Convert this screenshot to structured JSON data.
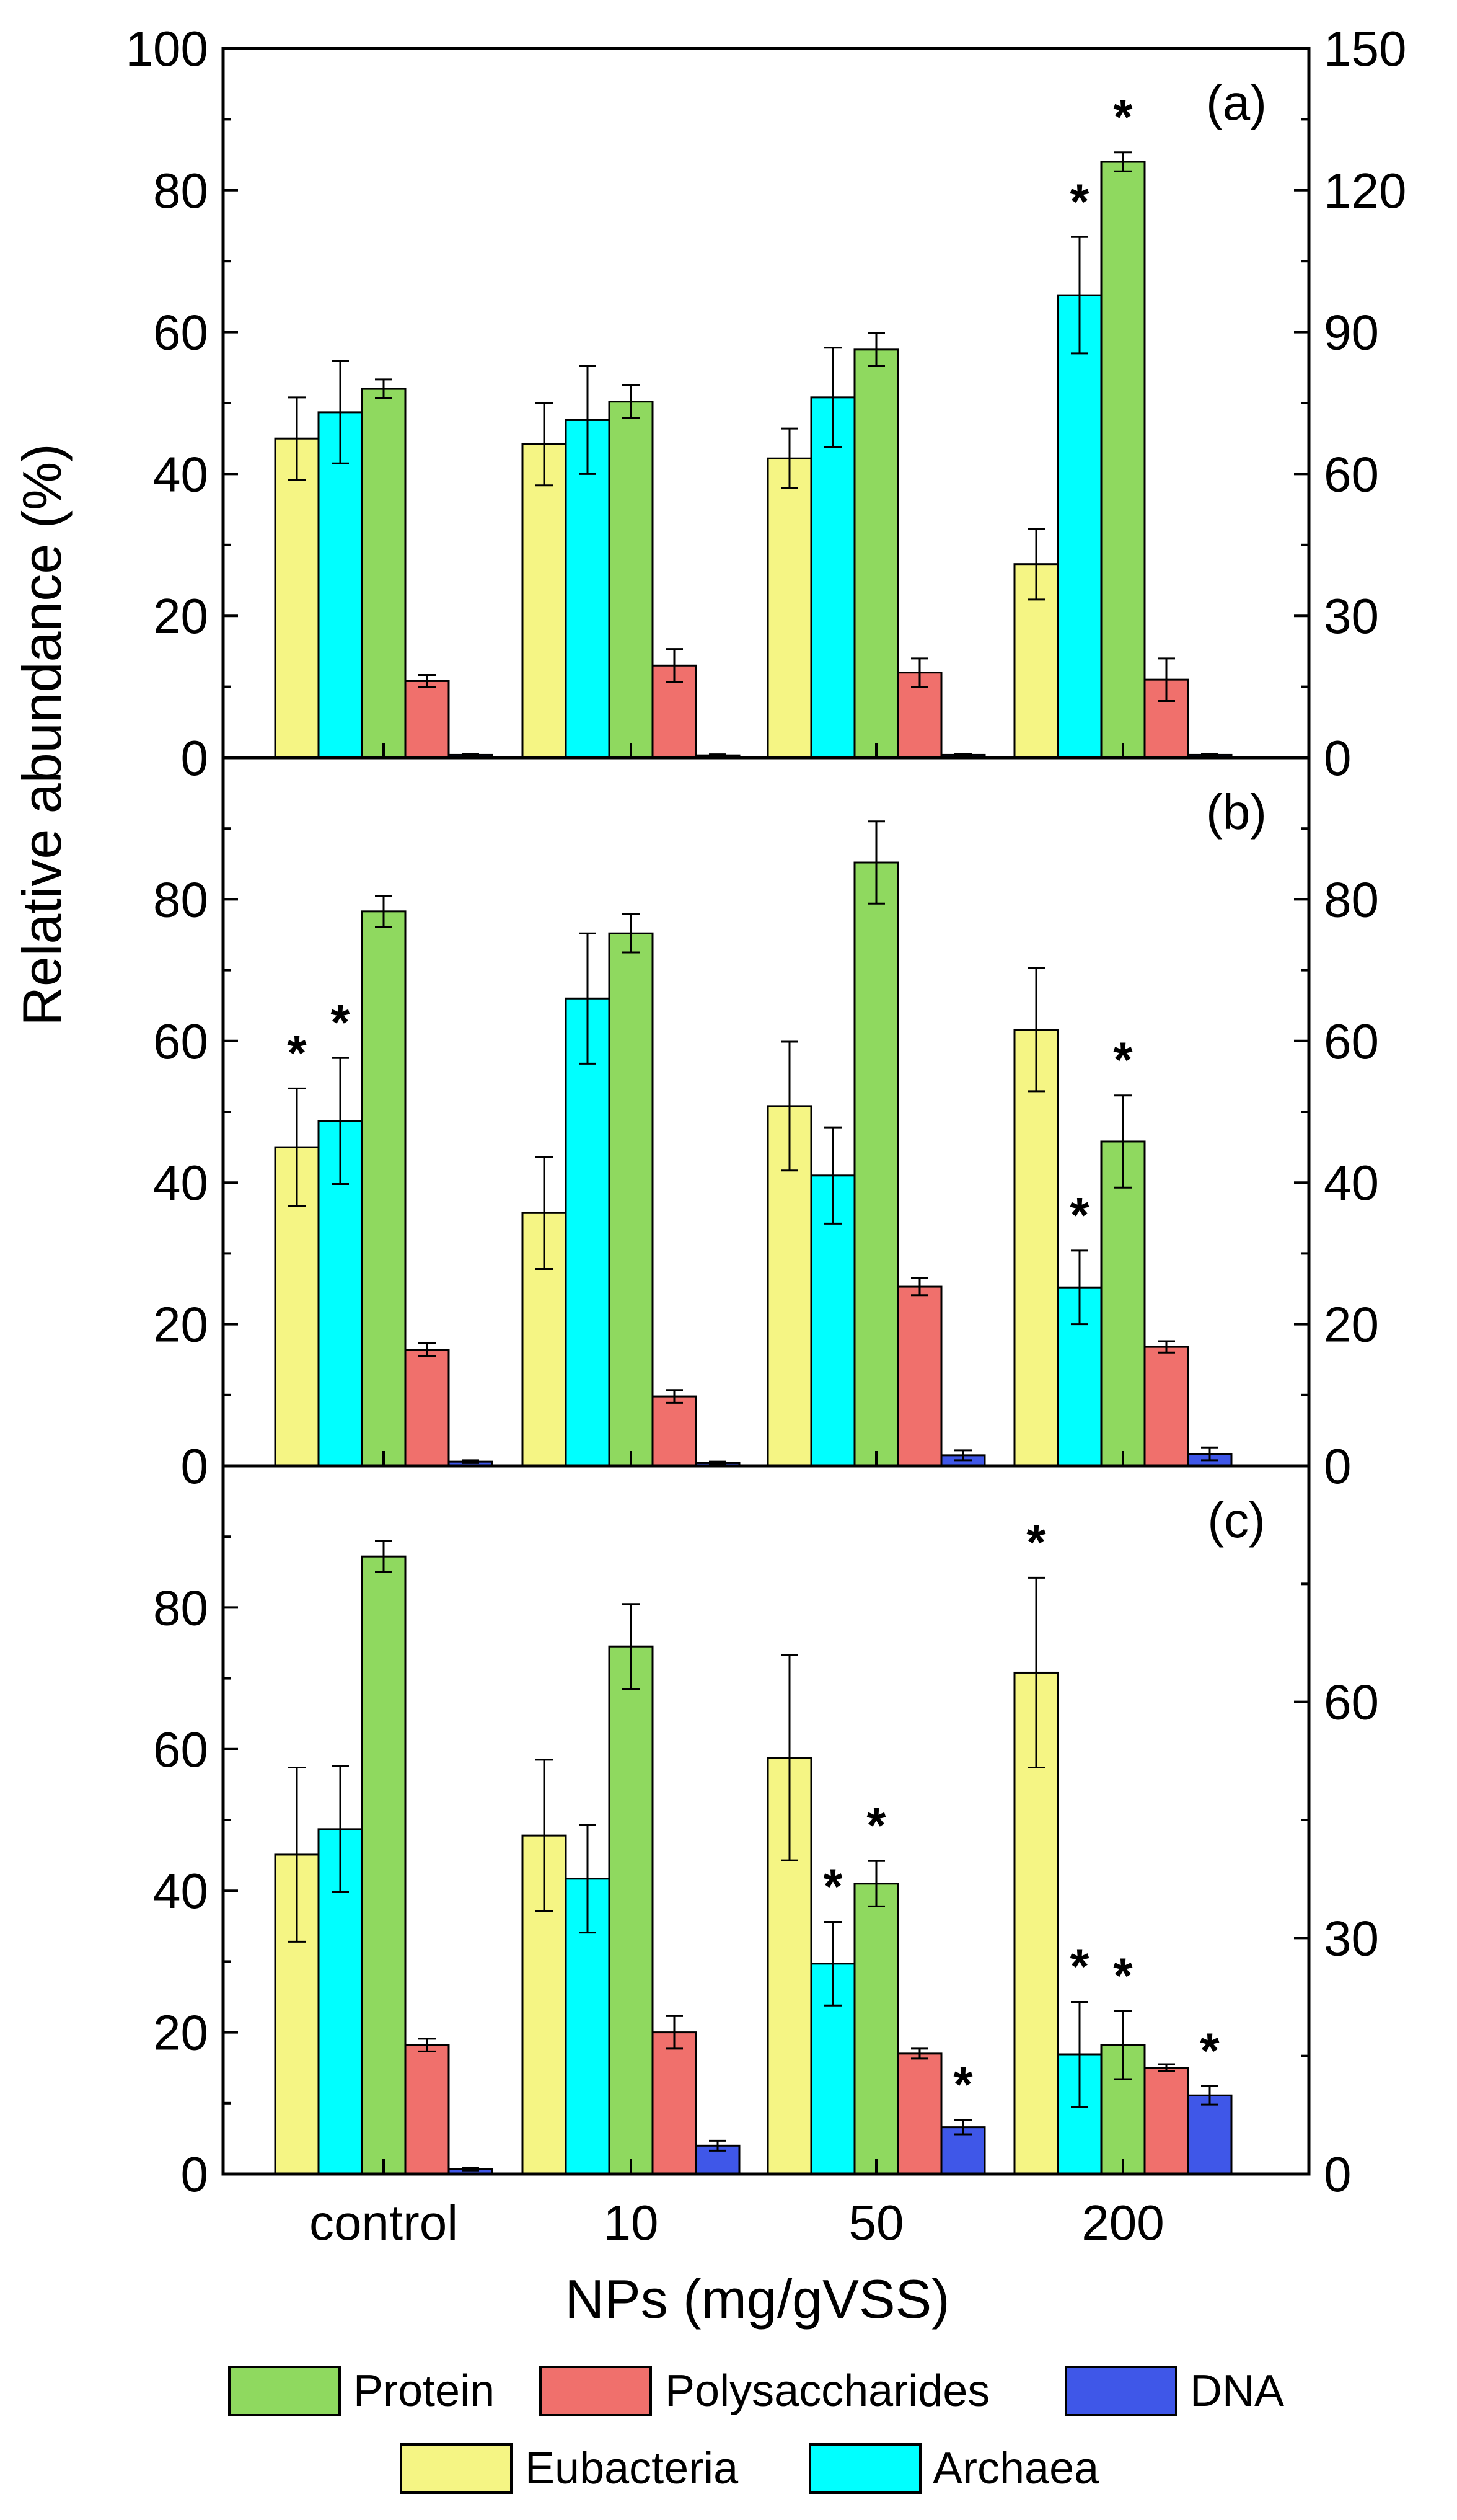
{
  "chart_data": {
    "type": "bar",
    "ylabel": "Relative abundance (%)",
    "xlabel": "NPs (mg/gVSS)",
    "categories": [
      "control",
      "10",
      "50",
      "200"
    ],
    "colors": {
      "Eubacteria": "#f5f584",
      "Archaea": "#00ffff",
      "Protein": "#8fd95f",
      "Polysaccharides": "#f0706c",
      "DNA": "#3f57e8"
    },
    "legend": {
      "row1": [
        "Protein",
        "Polysaccharides",
        "DNA"
      ],
      "row2": [
        "Eubacteria",
        "Archaea"
      ]
    },
    "panels": [
      {
        "label": "(a)",
        "left_axis": {
          "ylim": [
            0,
            100
          ],
          "ticks": [
            "0",
            "20",
            "40",
            "60",
            "80",
            "100"
          ]
        },
        "right_axis": {
          "ylim": [
            0,
            150
          ],
          "ticks": [
            "0",
            "30",
            "60",
            "90",
            "120",
            "150"
          ]
        },
        "series": [
          {
            "name": "Eubacteria",
            "axis": "left",
            "values": [
              45,
              44.2,
              42.2,
              27.3
            ],
            "errors": [
              5.8,
              5.8,
              4.2,
              5
            ],
            "sig": [
              false,
              false,
              false,
              false
            ]
          },
          {
            "name": "Archaea",
            "axis": "left",
            "values": [
              48.7,
              47.6,
              50.8,
              65.2
            ],
            "errors": [
              7.2,
              7.6,
              7,
              8.2
            ],
            "sig": [
              false,
              false,
              false,
              true
            ]
          },
          {
            "name": "Protein",
            "axis": "right",
            "values": [
              78,
              75.3,
              86.3,
              126
            ],
            "errors": [
              2,
              3.5,
              3.5,
              2
            ],
            "sig": [
              false,
              false,
              false,
              true
            ]
          },
          {
            "name": "Polysaccharides",
            "axis": "right",
            "values": [
              16.2,
              19.5,
              18,
              16.5
            ],
            "errors": [
              1.3,
              3.5,
              3,
              4.5
            ],
            "sig": [
              false,
              false,
              false,
              false
            ]
          },
          {
            "name": "DNA",
            "axis": "right",
            "values": [
              0.6,
              0.5,
              0.6,
              0.6
            ],
            "errors": [
              0.2,
              0.2,
              0.2,
              0.2
            ],
            "sig": [
              false,
              false,
              false,
              false
            ]
          }
        ]
      },
      {
        "label": "(b)",
        "left_axis": {
          "ylim": [
            0,
            100
          ],
          "ticks": [
            "0",
            "20",
            "40",
            "60",
            "80"
          ]
        },
        "right_axis": {
          "ylim": [
            0,
            100
          ],
          "ticks": [
            "0",
            "20",
            "40",
            "60",
            "80"
          ]
        },
        "series": [
          {
            "name": "Eubacteria",
            "axis": "left",
            "values": [
              45,
              35.7,
              50.8,
              61.6
            ],
            "errors": [
              8.3,
              7.9,
              9.1,
              8.7
            ],
            "sig": [
              true,
              false,
              false,
              false
            ]
          },
          {
            "name": "Archaea",
            "axis": "left",
            "values": [
              48.7,
              66,
              41,
              25.2
            ],
            "errors": [
              8.9,
              9.2,
              6.8,
              5.2
            ],
            "sig": [
              true,
              false,
              false,
              true
            ]
          },
          {
            "name": "Protein",
            "axis": "right",
            "values": [
              78.3,
              75.2,
              85.2,
              45.8
            ],
            "errors": [
              2.2,
              2.7,
              5.8,
              6.5
            ],
            "sig": [
              false,
              false,
              false,
              true
            ]
          },
          {
            "name": "Polysaccharides",
            "axis": "right",
            "values": [
              16.4,
              9.8,
              25.3,
              16.8
            ],
            "errors": [
              0.9,
              0.9,
              1.2,
              0.8
            ],
            "sig": [
              false,
              false,
              false,
              false
            ]
          },
          {
            "name": "DNA",
            "axis": "right",
            "values": [
              0.6,
              0.4,
              1.5,
              1.7
            ],
            "errors": [
              0.2,
              0.2,
              0.7,
              0.9
            ],
            "sig": [
              false,
              false,
              false,
              false
            ]
          }
        ]
      },
      {
        "label": "(c)",
        "left_axis": {
          "ylim": [
            0,
            100
          ],
          "ticks": [
            "0",
            "20",
            "40",
            "60",
            "80"
          ]
        },
        "right_axis": {
          "ylim": [
            0,
            90
          ],
          "ticks": [
            "0",
            "30",
            "60"
          ]
        },
        "series": [
          {
            "name": "Eubacteria",
            "axis": "left",
            "values": [
              45.1,
              47.8,
              58.8,
              70.8
            ],
            "errors": [
              12.3,
              10.7,
              14.5,
              13.4
            ],
            "sig": [
              false,
              false,
              false,
              true
            ]
          },
          {
            "name": "Archaea",
            "axis": "left",
            "values": [
              48.7,
              41.7,
              29.7,
              16.9
            ],
            "errors": [
              8.9,
              7.6,
              5.9,
              7.4
            ],
            "sig": [
              false,
              false,
              true,
              true
            ]
          },
          {
            "name": "Protein",
            "axis": "left",
            "values": [
              87.2,
              74.5,
              41,
              18.2
            ],
            "errors": [
              2.2,
              6,
              3.2,
              4.8
            ],
            "sig": [
              false,
              false,
              true,
              true
            ]
          },
          {
            "name": "Polysaccharides",
            "axis": "left",
            "values": [
              18.2,
              20,
              17,
              15
            ],
            "errors": [
              0.9,
              2.3,
              0.7,
              0.5
            ],
            "sig": [
              false,
              false,
              false,
              false
            ]
          },
          {
            "name": "DNA",
            "axis": "left",
            "values": [
              0.7,
              4,
              6.6,
              11.1
            ],
            "errors": [
              0.2,
              0.7,
              1,
              1.3
            ],
            "sig": [
              false,
              false,
              true,
              true
            ]
          }
        ]
      }
    ]
  }
}
